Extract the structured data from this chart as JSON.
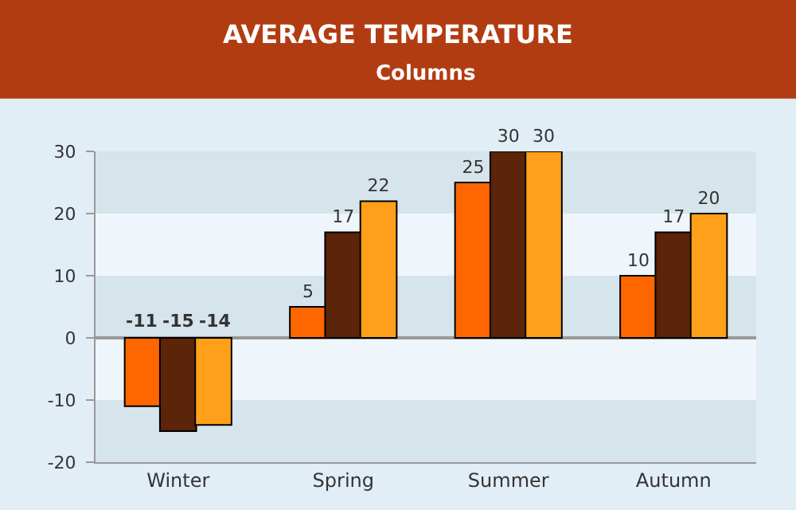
{
  "chart_data": {
    "type": "bar",
    "title": "AVERAGE TEMPERATURE",
    "subtitle": "Columns",
    "categories": [
      "Winter",
      "Spring",
      "Summer",
      "Autumn"
    ],
    "series": [
      {
        "color": "#ff6600",
        "values": [
          -11,
          5,
          25,
          10
        ]
      },
      {
        "color": "#5c2408",
        "values": [
          -15,
          17,
          30,
          17
        ]
      },
      {
        "color": "#ff9f1a",
        "values": [
          -14,
          22,
          30,
          20
        ]
      }
    ],
    "ylim": [
      -20,
      30
    ],
    "yticks": [
      -20,
      -10,
      0,
      10,
      20,
      30
    ],
    "grid": "y",
    "data_labels": true
  }
}
